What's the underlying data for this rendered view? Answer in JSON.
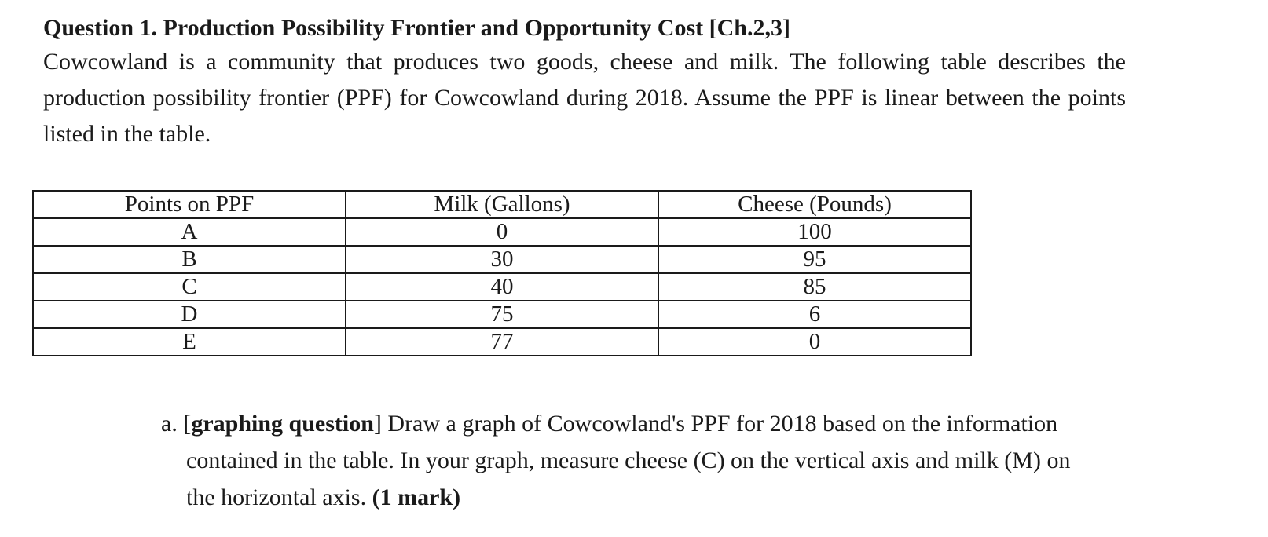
{
  "question": {
    "title": "Question 1. Production Possibility Frontier and Opportunity Cost [Ch.2,3]",
    "intro": "Cowcowland is a community that produces two goods, cheese and milk. The following table describes the production possibility frontier (PPF) for Cowcowland during 2018. Assume the PPF is linear between the points listed in the table."
  },
  "table": {
    "headers": [
      "Points on PPF",
      "Milk (Gallons)",
      "Cheese (Pounds)"
    ],
    "rows": [
      [
        "A",
        "0",
        "100"
      ],
      [
        "B",
        "30",
        "95"
      ],
      [
        "C",
        "40",
        "85"
      ],
      [
        "D",
        "75",
        "6"
      ],
      [
        "E",
        "77",
        "0"
      ]
    ]
  },
  "part_a": {
    "label": "a.",
    "open_bracket": "[",
    "tag": "graphing question",
    "close_bracket": "]",
    "text": " Draw a graph of Cowcowland's PPF for 2018 based on the information contained in the table. In your graph, measure cheese (C) on the vertical axis and milk (M) on the horizontal axis. ",
    "marks": "(1 mark)"
  }
}
